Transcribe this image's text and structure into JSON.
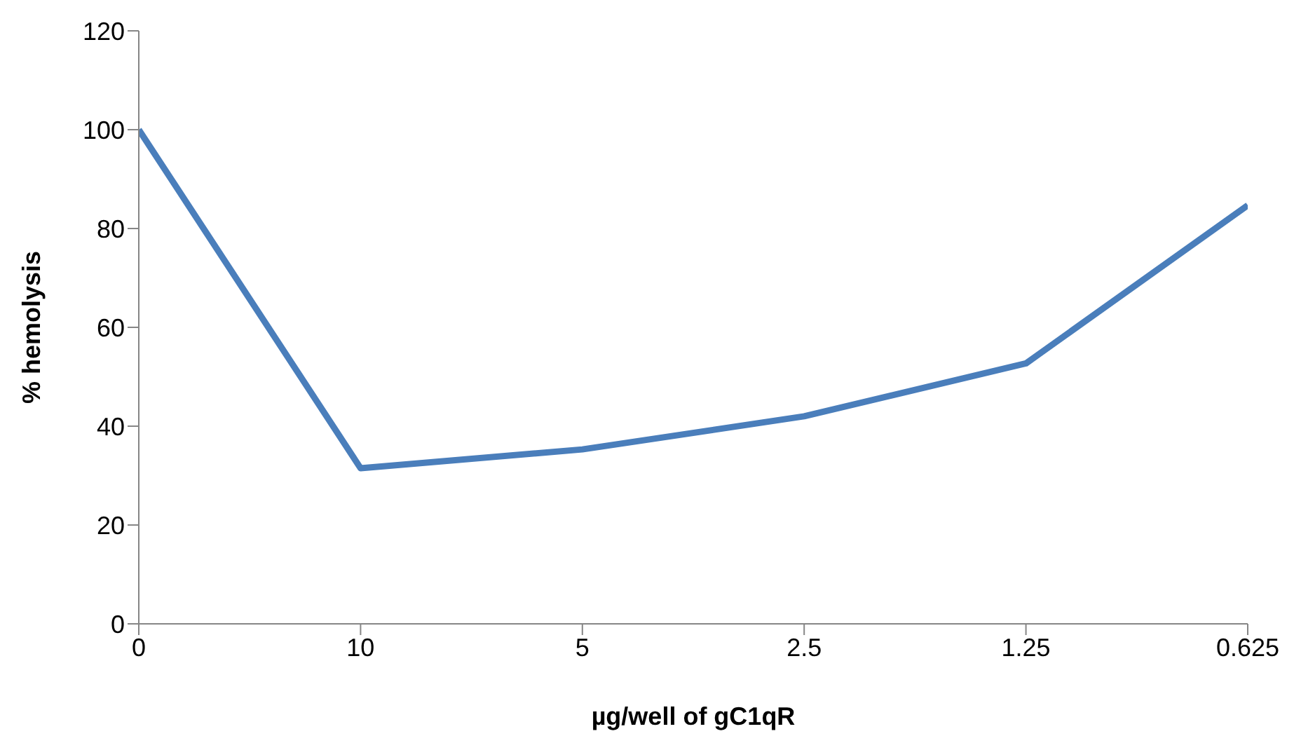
{
  "chart_data": {
    "type": "line",
    "xlabel": "µg/well of gC1qR",
    "ylabel": "% hemolysis",
    "categories": [
      "0",
      "10",
      "5",
      "2.5",
      "1.25",
      "0.625"
    ],
    "series": [
      {
        "color": "#4a7ebb",
        "values": [
          100,
          31.5,
          35.3,
          42,
          52.7,
          84.7
        ]
      }
    ],
    "ylim": [
      0,
      120
    ],
    "yticks": [
      0,
      20,
      40,
      60,
      80,
      100,
      120
    ],
    "grid": false,
    "legend": false,
    "marker": "none",
    "line_style": "solid"
  }
}
